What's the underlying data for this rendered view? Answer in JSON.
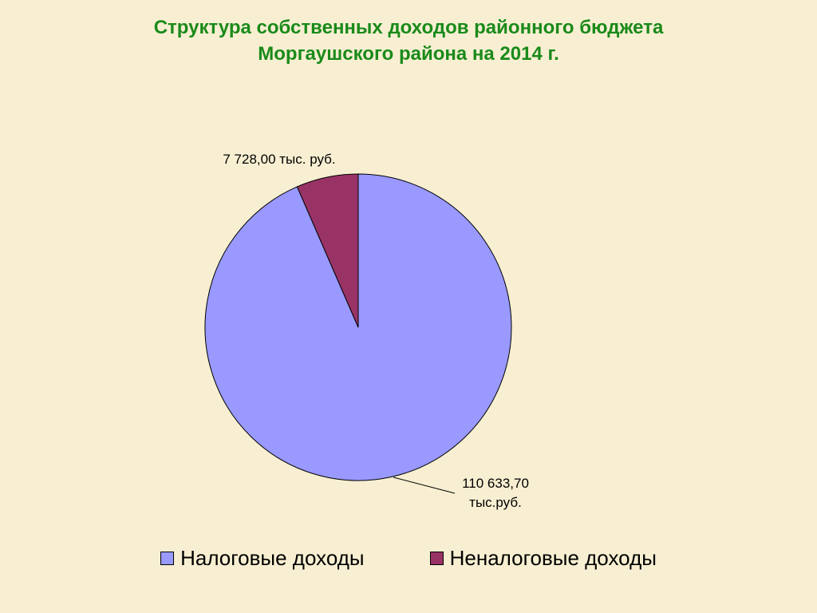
{
  "chart_data": {
    "type": "pie",
    "title": "Структура собственных доходов районного бюджета Моргаушского района на 2014 г.",
    "categories": [
      "Налоговые доходы",
      "Неналоговые доходы"
    ],
    "values": [
      110633.7,
      7728.0
    ],
    "value_labels": [
      "110 633,70 тыс.руб.",
      "7 728,00 тыс. руб."
    ],
    "colors": [
      "#9999ff",
      "#993366"
    ],
    "legend": "bottom"
  }
}
